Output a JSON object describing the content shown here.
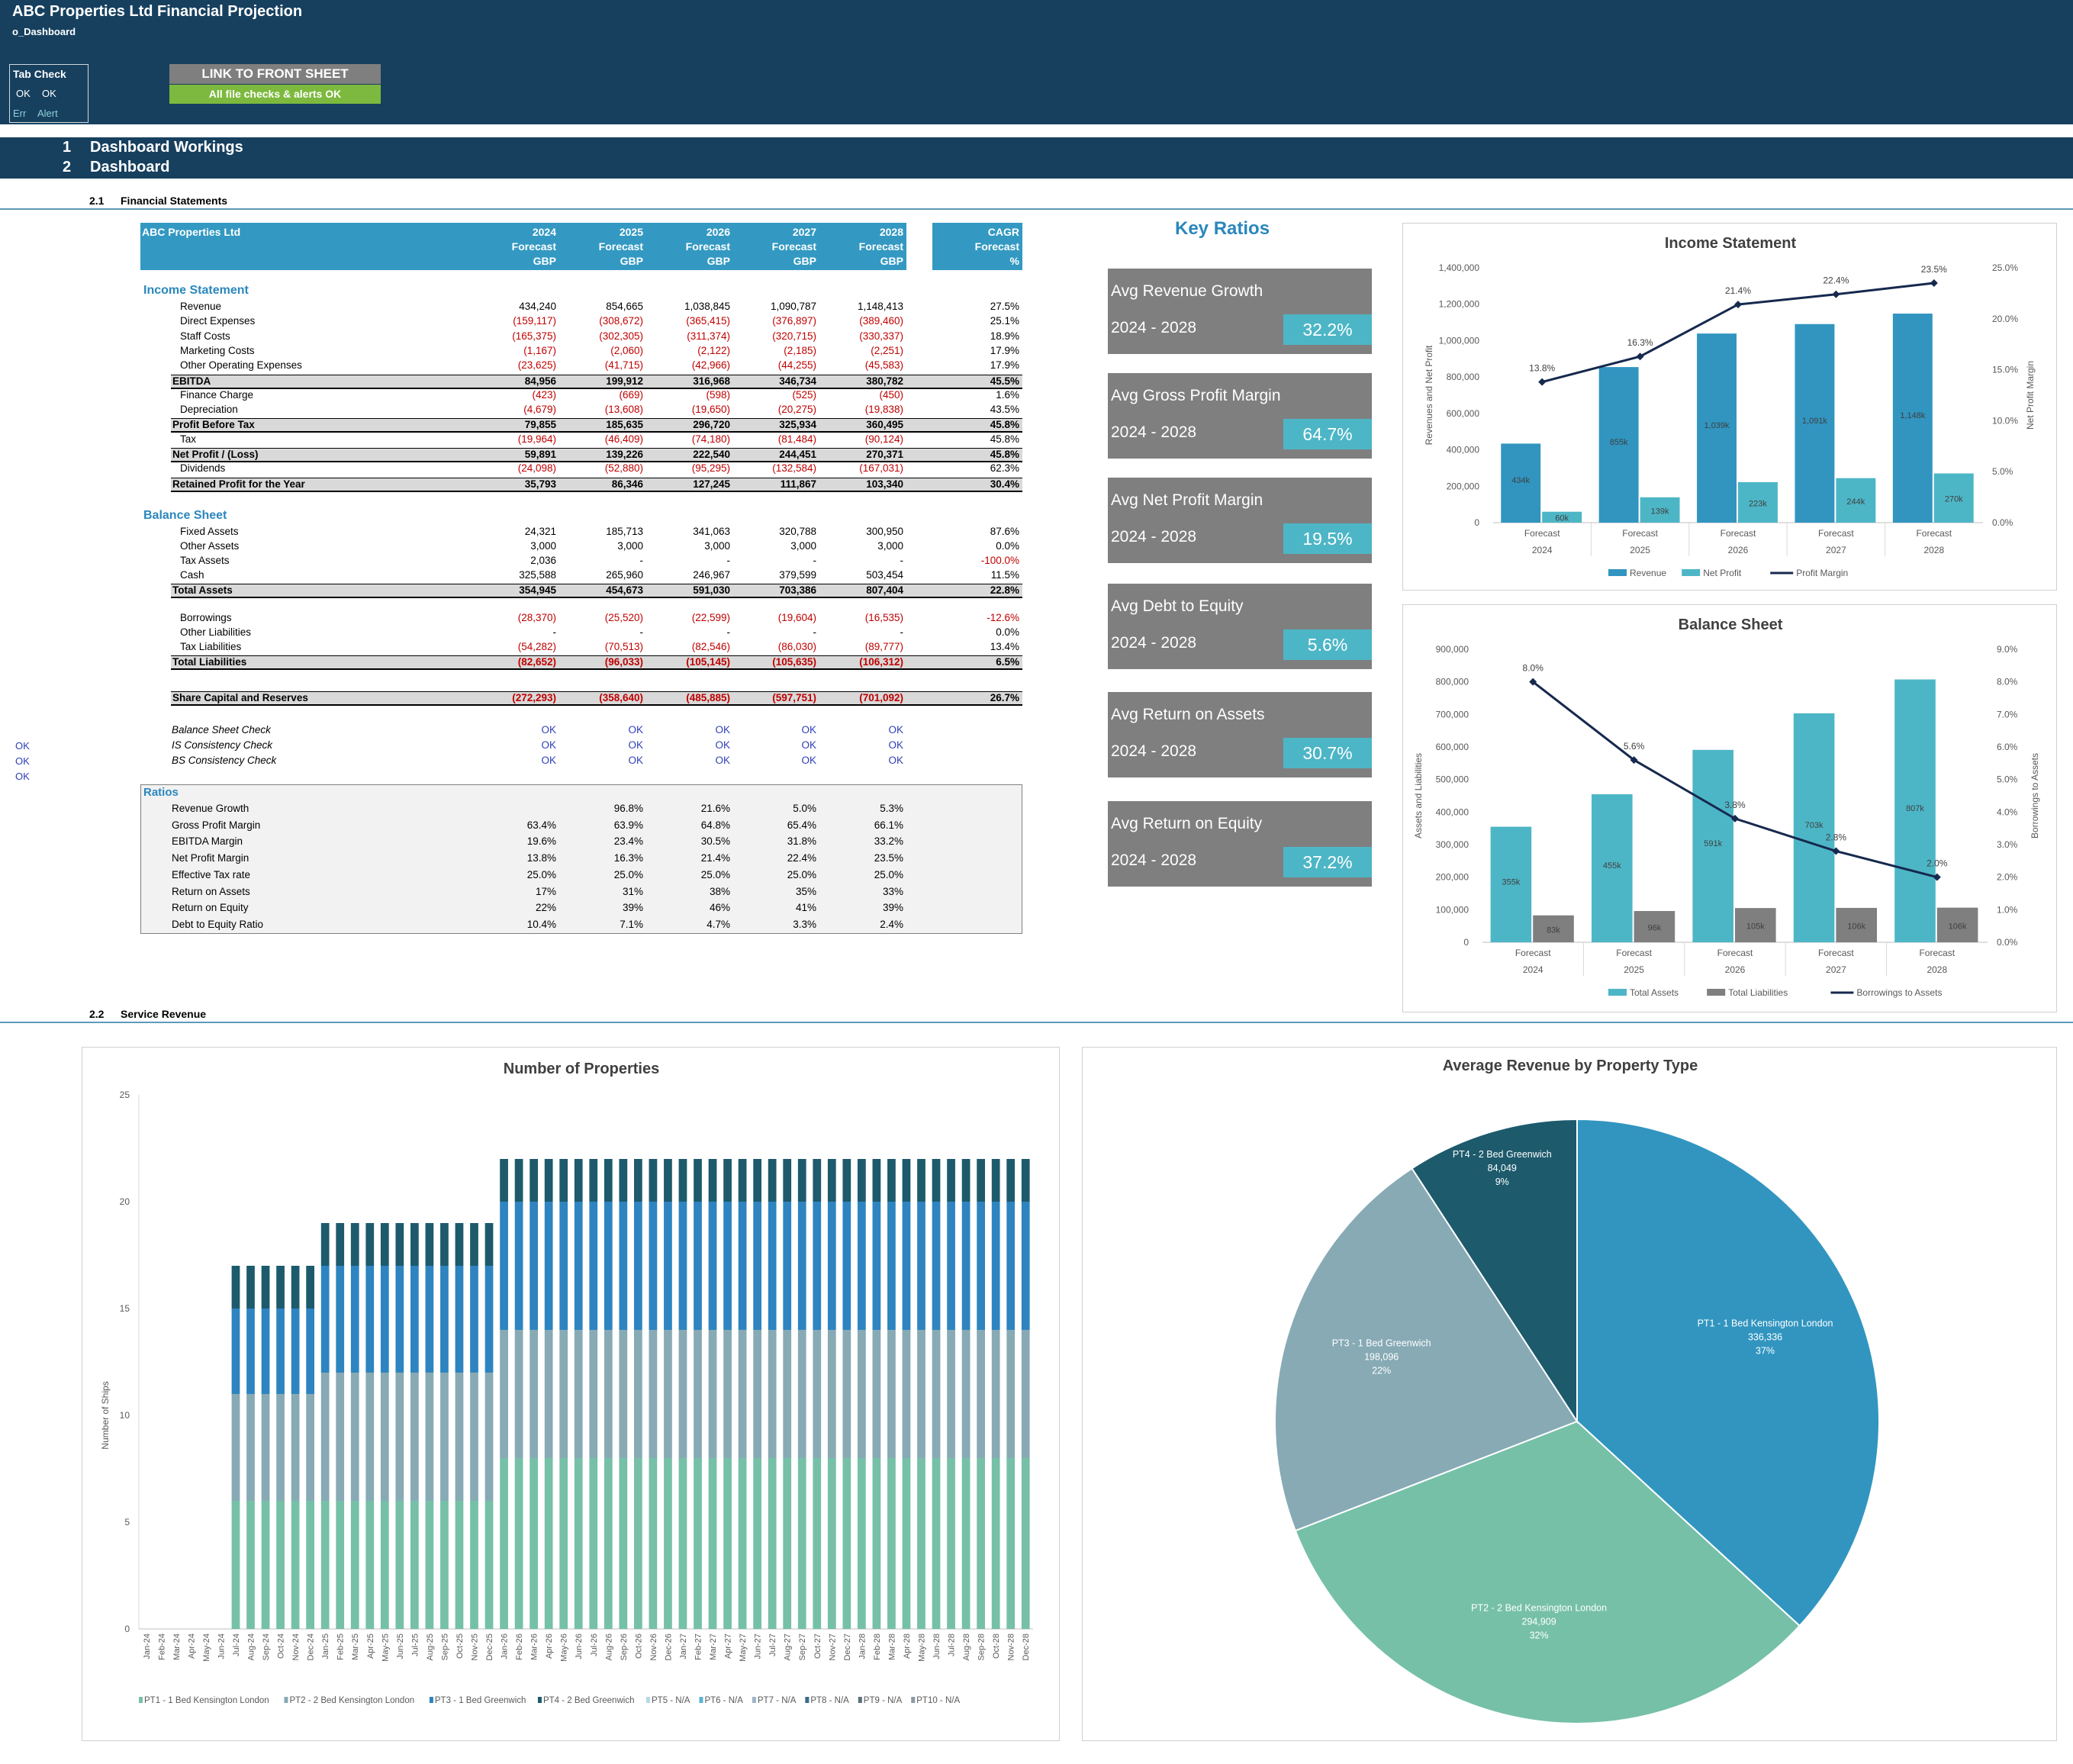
{
  "header": {
    "title": "ABC Properties Ltd Financial Projection",
    "sheet": "o_Dashboard",
    "tab_check_label": "Tab Check",
    "tab_check_ok1": "OK",
    "tab_check_ok2": "OK",
    "err_label": "Err",
    "alert_label": "Alert",
    "link_button": "LINK TO FRONT SHEET",
    "checks_status": "All file checks & alerts OK"
  },
  "sections": [
    {
      "num": "1",
      "label": "Dashboard Workings"
    },
    {
      "num": "2",
      "label": "Dashboard"
    }
  ],
  "subsections": {
    "s21_num": "2.1",
    "s21": "Financial Statements",
    "s22_num": "2.2",
    "s22": "Service Revenue"
  },
  "left_ok_flags": [
    "OK",
    "OK",
    "OK"
  ],
  "table": {
    "company": "ABC Properties Ltd",
    "years": [
      "2024",
      "2025",
      "2026",
      "2027",
      "2028"
    ],
    "forecast": "Forecast",
    "currency": "GBP",
    "cagr": "CAGR",
    "pct": "%",
    "income_title": "Income Statement",
    "income": [
      {
        "label": "Revenue",
        "indent": 1,
        "vals": [
          "434,240",
          "854,665",
          "1,038,845",
          "1,090,787",
          "1,148,413"
        ],
        "cagr": "27.5%",
        "neg": false
      },
      {
        "label": "Direct Expenses",
        "indent": 1,
        "vals": [
          "(159,117)",
          "(308,672)",
          "(365,415)",
          "(376,897)",
          "(389,460)"
        ],
        "cagr": "25.1%",
        "neg": true
      },
      {
        "label": "Staff Costs",
        "indent": 1,
        "vals": [
          "(165,375)",
          "(302,305)",
          "(311,374)",
          "(320,715)",
          "(330,337)"
        ],
        "cagr": "18.9%",
        "neg": true
      },
      {
        "label": "Marketing Costs",
        "indent": 1,
        "vals": [
          "(1,167)",
          "(2,060)",
          "(2,122)",
          "(2,185)",
          "(2,251)"
        ],
        "cagr": "17.9%",
        "neg": true
      },
      {
        "label": "Other Operating Expenses",
        "indent": 1,
        "vals": [
          "(23,625)",
          "(41,715)",
          "(42,966)",
          "(44,255)",
          "(45,583)"
        ],
        "cagr": "17.9%",
        "neg": true
      },
      {
        "label": "EBITDA",
        "indent": 0,
        "vals": [
          "84,956",
          "199,912",
          "316,968",
          "346,734",
          "380,782"
        ],
        "cagr": "45.5%",
        "total": true
      },
      {
        "label": "Finance Charge",
        "indent": 1,
        "vals": [
          "(423)",
          "(669)",
          "(598)",
          "(525)",
          "(450)"
        ],
        "cagr": "1.6%",
        "neg": true
      },
      {
        "label": "Depreciation",
        "indent": 1,
        "vals": [
          "(4,679)",
          "(13,608)",
          "(19,650)",
          "(20,275)",
          "(19,838)"
        ],
        "cagr": "43.5%",
        "neg": true
      },
      {
        "label": "Profit Before Tax",
        "indent": 0,
        "vals": [
          "79,855",
          "185,635",
          "296,720",
          "325,934",
          "360,495"
        ],
        "cagr": "45.8%",
        "total": true
      },
      {
        "label": "Tax",
        "indent": 1,
        "vals": [
          "(19,964)",
          "(46,409)",
          "(74,180)",
          "(81,484)",
          "(90,124)"
        ],
        "cagr": "45.8%",
        "neg": true
      },
      {
        "label": "Net Profit / (Loss)",
        "indent": 0,
        "vals": [
          "59,891",
          "139,226",
          "222,540",
          "244,451",
          "270,371"
        ],
        "cagr": "45.8%",
        "total": true
      },
      {
        "label": "Dividends",
        "indent": 1,
        "vals": [
          "(24,098)",
          "(52,880)",
          "(95,295)",
          "(132,584)",
          "(167,031)"
        ],
        "cagr": "62.3%",
        "neg": true
      },
      {
        "label": "Retained Profit for the Year",
        "indent": 0,
        "vals": [
          "35,793",
          "86,346",
          "127,245",
          "111,867",
          "103,340"
        ],
        "cagr": "30.4%",
        "total": true
      }
    ],
    "balance_title": "Balance Sheet",
    "assets": [
      {
        "label": "Fixed Assets",
        "indent": 1,
        "vals": [
          "24,321",
          "185,713",
          "341,063",
          "320,788",
          "300,950"
        ],
        "cagr": "87.6%"
      },
      {
        "label": "Other Assets",
        "indent": 1,
        "vals": [
          "3,000",
          "3,000",
          "3,000",
          "3,000",
          "3,000"
        ],
        "cagr": "0.0%"
      },
      {
        "label": "Tax Assets",
        "indent": 1,
        "vals": [
          "2,036",
          "-",
          "-",
          "-",
          "-"
        ],
        "cagr": "-100.0%",
        "cagrneg": true
      },
      {
        "label": "Cash",
        "indent": 1,
        "vals": [
          "325,588",
          "265,960",
          "246,967",
          "379,599",
          "503,454"
        ],
        "cagr": "11.5%"
      },
      {
        "label": "Total Assets",
        "indent": 0,
        "vals": [
          "354,945",
          "454,673",
          "591,030",
          "703,386",
          "807,404"
        ],
        "cagr": "22.8%",
        "total": true
      }
    ],
    "liabilities": [
      {
        "label": "Borrowings",
        "indent": 1,
        "vals": [
          "(28,370)",
          "(25,520)",
          "(22,599)",
          "(19,604)",
          "(16,535)"
        ],
        "cagr": "-12.6%",
        "neg": true,
        "cagrneg": true
      },
      {
        "label": "Other Liabilities",
        "indent": 1,
        "vals": [
          "-",
          "-",
          "-",
          "-",
          "-"
        ],
        "cagr": "0.0%"
      },
      {
        "label": "Tax Liabilities",
        "indent": 1,
        "vals": [
          "(54,282)",
          "(70,513)",
          "(82,546)",
          "(86,030)",
          "(89,777)"
        ],
        "cagr": "13.4%",
        "neg": true
      },
      {
        "label": "Total Liabilities",
        "indent": 0,
        "vals": [
          "(82,652)",
          "(96,033)",
          "(105,145)",
          "(105,635)",
          "(106,312)"
        ],
        "cagr": "6.5%",
        "total": true,
        "neg": true
      }
    ],
    "equity": {
      "label": "Share Capital and Reserves",
      "vals": [
        "(272,293)",
        "(358,640)",
        "(485,885)",
        "(597,751)",
        "(701,092)"
      ],
      "cagr": "26.7%"
    },
    "checks": [
      {
        "label": "Balance Sheet Check",
        "vals": [
          "OK",
          "OK",
          "OK",
          "OK",
          "OK"
        ]
      },
      {
        "label": "IS Consistency Check",
        "vals": [
          "OK",
          "OK",
          "OK",
          "OK",
          "OK"
        ]
      },
      {
        "label": "BS Consistency Check",
        "vals": [
          "OK",
          "OK",
          "OK",
          "OK",
          "OK"
        ]
      }
    ],
    "ratios_title": "Ratios",
    "ratios": [
      {
        "label": "Revenue Growth",
        "vals": [
          "",
          "96.8%",
          "21.6%",
          "5.0%",
          "5.3%"
        ]
      },
      {
        "label": "Gross Profit Margin",
        "vals": [
          "63.4%",
          "63.9%",
          "64.8%",
          "65.4%",
          "66.1%"
        ]
      },
      {
        "label": "EBITDA Margin",
        "vals": [
          "19.6%",
          "23.4%",
          "30.5%",
          "31.8%",
          "33.2%"
        ]
      },
      {
        "label": "Net Profit Margin",
        "vals": [
          "13.8%",
          "16.3%",
          "21.4%",
          "22.4%",
          "23.5%"
        ]
      },
      {
        "label": "Effective Tax rate",
        "vals": [
          "25.0%",
          "25.0%",
          "25.0%",
          "25.0%",
          "25.0%"
        ]
      },
      {
        "label": "Return on Assets",
        "vals": [
          "17%",
          "31%",
          "38%",
          "35%",
          "33%"
        ]
      },
      {
        "label": "Return on Equity",
        "vals": [
          "22%",
          "39%",
          "46%",
          "41%",
          "39%"
        ]
      },
      {
        "label": "Debt to Equity Ratio",
        "vals": [
          "10.4%",
          "7.1%",
          "4.7%",
          "3.3%",
          "2.4%"
        ]
      }
    ]
  },
  "key_ratios": {
    "title": "Key Ratios",
    "items": [
      {
        "label": "Avg Revenue Growth",
        "period": "2024 - 2028",
        "value": "32.2%"
      },
      {
        "label": "Avg Gross Profit Margin",
        "period": "2024 - 2028",
        "value": "64.7%"
      },
      {
        "label": "Avg Net Profit Margin",
        "period": "2024 - 2028",
        "value": "19.5%"
      },
      {
        "label": "Avg Debt to Equity",
        "period": "2024 - 2028",
        "value": "5.6%"
      },
      {
        "label": "Avg Return on Assets",
        "period": "2024 - 2028",
        "value": "30.7%"
      },
      {
        "label": "Avg Return on Equity",
        "period": "2024 - 2028",
        "value": "37.2%"
      }
    ]
  },
  "chart_data": [
    {
      "type": "bar",
      "title": "Income Statement",
      "categories": [
        "2024",
        "2025",
        "2026",
        "2027",
        "2028"
      ],
      "category_group": "Forecast",
      "ylabel": "Revenues and Net Profit",
      "y2label": "Net Profit Margin",
      "ylim": [
        0,
        1400000
      ],
      "y2lim": [
        0,
        25
      ],
      "yticks": [
        "0",
        "200,000",
        "400,000",
        "600,000",
        "800,000",
        "1,000,000",
        "1,200,000",
        "1,400,000"
      ],
      "y2ticks": [
        "0.0%",
        "5.0%",
        "10.0%",
        "15.0%",
        "20.0%",
        "25.0%"
      ],
      "series": [
        {
          "name": "Revenue",
          "values": [
            434240,
            854665,
            1038845,
            1090787,
            1148413
          ],
          "labels": [
            "434k",
            "855k",
            "1,039k",
            "1,091k",
            "1,148k"
          ],
          "color": "#3195c0"
        },
        {
          "name": "Net Profit",
          "values": [
            59891,
            139226,
            222540,
            244451,
            270371
          ],
          "labels": [
            "60k",
            "139k",
            "223k",
            "244k",
            "270k"
          ],
          "color": "#4db6c6"
        },
        {
          "name": "Profit Margin",
          "type": "line",
          "axis": "y2",
          "values": [
            13.8,
            16.3,
            21.4,
            22.4,
            23.5
          ],
          "labels": [
            "13.8%",
            "16.3%",
            "21.4%",
            "22.4%",
            "23.5%"
          ],
          "color": "#16294e"
        }
      ]
    },
    {
      "type": "bar",
      "title": "Balance Sheet",
      "categories": [
        "2024",
        "2025",
        "2026",
        "2027",
        "2028"
      ],
      "category_group": "Forecast",
      "ylabel": "Assets and Liabilities",
      "y2label": "Borrowings to Assets",
      "ylim": [
        0,
        900000
      ],
      "y2lim": [
        0,
        9
      ],
      "yticks": [
        "0",
        "100,000",
        "200,000",
        "300,000",
        "400,000",
        "500,000",
        "600,000",
        "700,000",
        "800,000",
        "900,000"
      ],
      "y2ticks": [
        "0.0%",
        "1.0%",
        "2.0%",
        "3.0%",
        "4.0%",
        "5.0%",
        "6.0%",
        "7.0%",
        "8.0%",
        "9.0%"
      ],
      "series": [
        {
          "name": "Total Assets",
          "values": [
            354945,
            454673,
            591030,
            703386,
            807404
          ],
          "labels": [
            "355k",
            "455k",
            "591k",
            "703k",
            "807k"
          ],
          "color": "#4db6c6"
        },
        {
          "name": "Total Liabilities",
          "values": [
            82652,
            96033,
            105145,
            105635,
            106312
          ],
          "labels": [
            "83k",
            "96k",
            "105k",
            "106k",
            "106k"
          ],
          "color": "#7f7f7f"
        },
        {
          "name": "Borrowings to Assets",
          "type": "line",
          "axis": "y2",
          "values": [
            8.0,
            5.6,
            3.8,
            2.8,
            2.0
          ],
          "labels": [
            "8.0%",
            "5.6%",
            "3.8%",
            "2.8%",
            "2.0%"
          ],
          "color": "#16294e"
        }
      ]
    },
    {
      "type": "bar",
      "stacked": true,
      "title": "Number of Properties",
      "ylabel": "Number of Ships",
      "ylim": [
        0,
        25
      ],
      "yticks": [
        "0",
        "5",
        "10",
        "15",
        "20",
        "25"
      ],
      "x_start": "Jan-24",
      "x": [
        "Jan-24",
        "Feb-24",
        "Mar-24",
        "Apr-24",
        "May-24",
        "Jun-24",
        "Jul-24",
        "Aug-24",
        "Sep-24",
        "Oct-24",
        "Nov-24",
        "Dec-24",
        "Jan-25",
        "Feb-25",
        "Mar-25",
        "Apr-25",
        "May-25",
        "Jun-25",
        "Jul-25",
        "Aug-25",
        "Sep-25",
        "Oct-25",
        "Nov-25",
        "Dec-25",
        "Jan-26",
        "Feb-26",
        "Mar-26",
        "Apr-26",
        "May-26",
        "Jun-26",
        "Jul-26",
        "Aug-26",
        "Sep-26",
        "Oct-26",
        "Nov-26",
        "Dec-26",
        "Jan-27",
        "Feb-27",
        "Mar-27",
        "Apr-27",
        "May-27",
        "Jun-27",
        "Jul-27",
        "Aug-27",
        "Sep-27",
        "Oct-27",
        "Nov-27",
        "Dec-27",
        "Jan-28",
        "Feb-28",
        "Mar-28",
        "Apr-28",
        "May-28",
        "Jun-28",
        "Jul-28",
        "Aug-28",
        "Sep-28",
        "Oct-28",
        "Nov-28",
        "Dec-28"
      ],
      "series": [
        {
          "name": "PT1 - 1 Bed Kensington London",
          "color": "#76c0a8",
          "segments": [
            [
              0,
              0
            ],
            [
              6,
              6
            ],
            [
              12,
              6
            ],
            [
              24,
              8
            ]
          ]
        },
        {
          "name": "PT2 - 2 Bed Kensington London",
          "color": "#87aab5",
          "segments": [
            [
              0,
              0
            ],
            [
              6,
              5
            ],
            [
              12,
              6
            ],
            [
              24,
              6
            ]
          ]
        },
        {
          "name": "PT3 - 1 Bed Greenwich",
          "color": "#2e84c0",
          "segments": [
            [
              0,
              0
            ],
            [
              6,
              4
            ],
            [
              12,
              5
            ],
            [
              24,
              6
            ]
          ]
        },
        {
          "name": "PT4 - 2 Bed Greenwich",
          "color": "#1d5a6c",
          "segments": [
            [
              0,
              0
            ],
            [
              6,
              2
            ],
            [
              12,
              2
            ],
            [
              24,
              2
            ]
          ]
        },
        {
          "name": "PT5 - N/A",
          "color": "#b6d7e8",
          "segments": [
            [
              0,
              0
            ]
          ]
        },
        {
          "name": "PT6 - N/A",
          "color": "#5ab4d6",
          "segments": [
            [
              0,
              0
            ]
          ]
        },
        {
          "name": "PT7 - N/A",
          "color": "#9fb3c8",
          "segments": [
            [
              0,
              0
            ]
          ]
        },
        {
          "name": "PT8 - N/A",
          "color": "#3b6a8a",
          "segments": [
            [
              0,
              0
            ]
          ]
        },
        {
          "name": "PT9 - N/A",
          "color": "#5f6f7a",
          "segments": [
            [
              0,
              0
            ]
          ]
        },
        {
          "name": "PT10 - N/A",
          "color": "#8a9aa6",
          "segments": [
            [
              0,
              0
            ]
          ]
        }
      ]
    },
    {
      "type": "pie",
      "title": "Average Revenue by Property Type",
      "slices": [
        {
          "name": "PT1 - 1 Bed Kensington London",
          "value": 336336,
          "value_label": "336,336",
          "pct": "37%",
          "color": "#3195c0"
        },
        {
          "name": "PT2 - 2 Bed Kensington London",
          "value": 294909,
          "value_label": "294,909",
          "pct": "32%",
          "color": "#76c0a8"
        },
        {
          "name": "PT3 - 1 Bed Greenwich",
          "value": 198096,
          "value_label": "198,096",
          "pct": "22%",
          "color": "#87aab5"
        },
        {
          "name": "PT4 - 2 Bed Greenwich",
          "value": 84049,
          "value_label": "84,049",
          "pct": "9%",
          "color": "#1d5a6c"
        }
      ]
    }
  ]
}
